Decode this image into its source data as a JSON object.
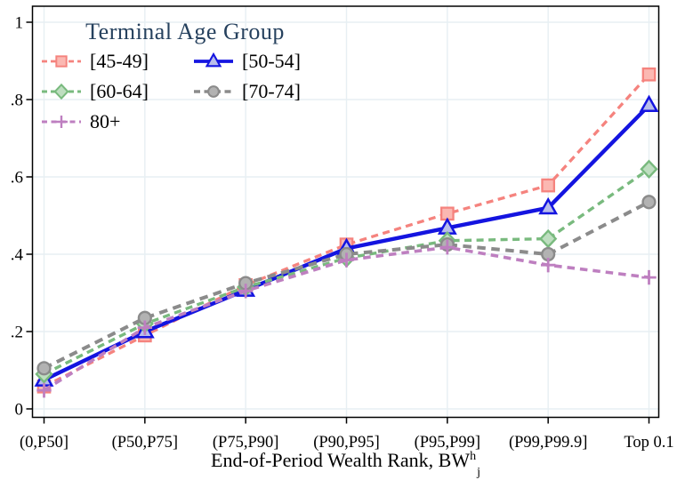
{
  "chart_data": {
    "type": "line",
    "title": "",
    "legend_title": "Terminal Age Group",
    "legend_position": "inside-top-left",
    "grid": true,
    "categories": [
      "(0,P50]",
      "(P50,P75]",
      "(P75,P90]",
      "(P90,P95]",
      "(P95,P99]",
      "(P99,P99.9]",
      "Top 0.1"
    ],
    "xlabel": {
      "base": "End-of-Period Wealth Rank, BW",
      "sup": "h",
      "sub": "j"
    },
    "ylabel": "",
    "ylim": [
      0,
      1
    ],
    "yticks": [
      0,
      0.2,
      0.4,
      0.6,
      0.8,
      1
    ],
    "ytick_labels": [
      "0",
      ".2",
      ".4",
      ".6",
      ".8",
      "1"
    ],
    "series": [
      {
        "name": "[45-49]",
        "marker": "square",
        "line_style": "dashed",
        "color": "#f5837e",
        "marker_fill": "#fbb8b2",
        "values": [
          0.058,
          0.19,
          0.32,
          0.425,
          0.505,
          0.578,
          0.865
        ]
      },
      {
        "name": "[50-54]",
        "marker": "triangle",
        "line_style": "solid",
        "color": "#1414e0",
        "marker_fill": "#b9bdeb",
        "values": [
          0.075,
          0.2,
          0.307,
          0.415,
          0.468,
          0.52,
          0.785
        ]
      },
      {
        "name": "[60-64]",
        "marker": "diamond",
        "line_style": "dashed",
        "color": "#79ba7e",
        "marker_fill": "#bedec0",
        "values": [
          0.09,
          0.22,
          0.315,
          0.39,
          0.435,
          0.44,
          0.62
        ]
      },
      {
        "name": "[70-74]",
        "marker": "circle",
        "line_style": "dashed",
        "color": "#8b8b8b",
        "marker_fill": "#b2b2b2",
        "values": [
          0.105,
          0.235,
          0.325,
          0.4,
          0.425,
          0.4,
          0.535
        ]
      },
      {
        "name": "80+",
        "marker": "plus",
        "line_style": "dashed",
        "color": "#be7fc0",
        "marker_fill": "#be7fc0",
        "values": [
          0.048,
          0.21,
          0.305,
          0.385,
          0.418,
          0.372,
          0.34
        ]
      }
    ],
    "colors": {
      "background": "#ffffff",
      "grid": "#e7eff3",
      "axis": "#000000",
      "tick_label": "#000000",
      "legend_title": "#26415e"
    }
  }
}
